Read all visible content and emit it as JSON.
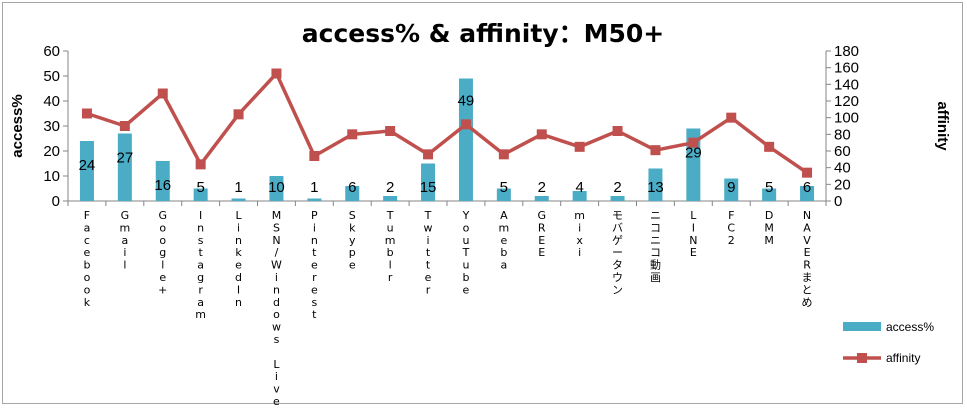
{
  "chart_data": {
    "type": "bar",
    "title": "access% & affinity：M50+",
    "ylabel": "access%",
    "y2label": "affinity",
    "ylim": [
      0,
      60
    ],
    "y2lim": [
      0,
      180
    ],
    "yticks": [
      0,
      10,
      20,
      30,
      40,
      50,
      60
    ],
    "y2ticks": [
      0,
      20,
      40,
      60,
      80,
      100,
      120,
      140,
      160,
      180
    ],
    "grid": false,
    "legend_position": "bottom-right",
    "categories": [
      "Facebook",
      "Gmail",
      "Google+",
      "Instagram",
      "LinkedIn",
      "MSN/Windows Live",
      "Pinterest",
      "Skype",
      "Tumblr",
      "Twitter",
      "YouTube",
      "Ameba",
      "GREE",
      "mixi",
      "モバゲータウン",
      "ニコニコ動画",
      "LINE",
      "FC2",
      "DMM",
      "NAVERまとめ"
    ],
    "series": [
      {
        "name": "access%",
        "type": "bar",
        "axis": "left",
        "color": "#4bacc6",
        "values": [
          24,
          27,
          16,
          5,
          1,
          10,
          1,
          6,
          2,
          15,
          49,
          5,
          2,
          4,
          2,
          13,
          29,
          9,
          5,
          6
        ],
        "labels": [
          "24",
          "27",
          "16",
          "5",
          "1",
          "10",
          "1",
          "6",
          "2",
          "15",
          "49",
          "5",
          "2",
          "4",
          "2",
          "13",
          "29",
          "9",
          "5",
          "6"
        ]
      },
      {
        "name": "affinity",
        "type": "line",
        "axis": "right",
        "color": "#c0504d",
        "values": [
          105,
          90,
          129,
          44,
          104,
          153,
          54,
          80,
          84,
          56,
          92,
          56,
          80,
          65,
          84,
          61,
          70,
          100,
          65,
          34
        ]
      }
    ]
  }
}
